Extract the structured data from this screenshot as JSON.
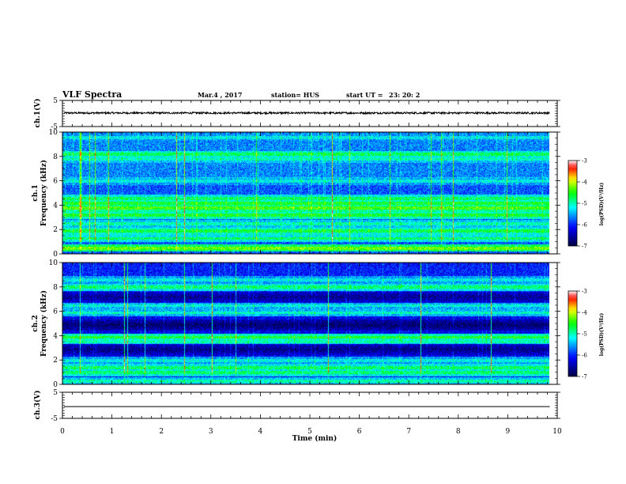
{
  "chart_data": {
    "type": "heatmap",
    "header": {
      "title": "VLF Spectra",
      "date": "Mar.4  , 2017",
      "station": "station= HUS",
      "start_label": "start  UT  =",
      "start_time": "23: 20: 2"
    },
    "x_axis": {
      "label": "Time  (min)",
      "range": [
        0,
        10
      ],
      "ticks": [
        "0",
        "1",
        "2",
        "3",
        "4",
        "5",
        "6",
        "7",
        "8",
        "9",
        "10"
      ],
      "data_end": 9.85
    },
    "panels": [
      {
        "id": "ch1-waveform",
        "type": "line",
        "ylabel": "ch.1(V)",
        "ylim": [
          -5,
          5
        ],
        "yticks": [
          "5",
          "-5"
        ],
        "baseline": 0.2,
        "noise_amplitude": 0.35
      },
      {
        "id": "ch1-spectrogram",
        "type": "heatmap",
        "ylabel_top": "ch.1",
        "ylabel": "Frequency  (kHz)",
        "ylim": [
          0,
          10
        ],
        "yticks": [
          "0",
          "2",
          "4",
          "6",
          "8",
          "10"
        ],
        "background_intensity": 0.3,
        "bands": [
          {
            "freq": 0.5,
            "intensity": 0.68
          },
          {
            "freq": 1.3,
            "intensity": 0.55
          },
          {
            "freq": 1.9,
            "intensity": 0.58
          },
          {
            "freq": 2.5,
            "intensity": 0.5
          },
          {
            "freq": 3.2,
            "intensity": 0.6
          },
          {
            "freq": 3.8,
            "intensity": 0.65
          },
          {
            "freq": 4.2,
            "intensity": 0.6
          },
          {
            "freq": 4.6,
            "intensity": 0.55
          },
          {
            "freq": 6.0,
            "intensity": 0.45
          },
          {
            "freq": 7.8,
            "intensity": 0.45
          },
          {
            "freq": 8.2,
            "intensity": 0.52
          },
          {
            "freq": 9.6,
            "intensity": 0.4
          }
        ],
        "colorbar": {
          "label": "log(PSD)(V²/Hz)",
          "range": [
            -7,
            -3
          ],
          "ticks": [
            "-3",
            "-4",
            "-5",
            "-6",
            "-7"
          ]
        }
      },
      {
        "id": "ch2-spectrogram",
        "type": "heatmap",
        "ylabel_top": "ch.2",
        "ylabel": "Frequency  (kHz)",
        "ylim": [
          0,
          10
        ],
        "yticks": [
          "0",
          "2",
          "4",
          "6",
          "8",
          "10"
        ],
        "background_intensity": 0.2,
        "bands": [
          {
            "freq": 0.3,
            "intensity": 0.5
          },
          {
            "freq": 1.0,
            "intensity": 0.55
          },
          {
            "freq": 1.4,
            "intensity": 0.55
          },
          {
            "freq": 2.0,
            "intensity": 0.45
          },
          {
            "freq": 3.5,
            "intensity": 0.5
          },
          {
            "freq": 3.9,
            "intensity": 0.6
          },
          {
            "freq": 5.9,
            "intensity": 0.48
          },
          {
            "freq": 6.5,
            "intensity": 0.42
          },
          {
            "freq": 8.0,
            "intensity": 0.5
          },
          {
            "freq": 8.6,
            "intensity": 0.4
          }
        ],
        "dark_bands": [
          {
            "freq": 4.9,
            "intensity": 0.05
          },
          {
            "freq": 7.2,
            "intensity": 0.05
          },
          {
            "freq": 2.9,
            "intensity": 0.08
          }
        ],
        "colorbar": {
          "label": "log(PSD)(V²/Hz)",
          "range": [
            -7,
            -3
          ],
          "ticks": [
            "-3",
            "-4",
            "-5",
            "-6",
            "-7"
          ]
        }
      },
      {
        "id": "ch3-waveform",
        "type": "line",
        "ylabel": "ch.3(V)",
        "ylim": [
          -5,
          5
        ],
        "yticks": [
          "5",
          "-5"
        ],
        "baseline": -0.5,
        "noise_amplitude": 0.0
      }
    ],
    "colormap": [
      "#000040",
      "#0000ff",
      "#00ffff",
      "#00ff00",
      "#ffff00",
      "#ff0000",
      "#ffffff"
    ]
  }
}
